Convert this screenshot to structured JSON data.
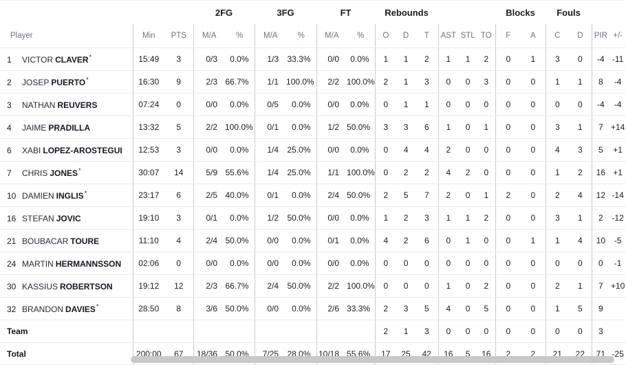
{
  "groups": {
    "fg2": "2FG",
    "fg3": "3FG",
    "ft": "FT",
    "reb": "Rebounds",
    "blk": "Blocks",
    "fouls": "Fouls"
  },
  "headers": {
    "player": "Player",
    "min": "Min",
    "pts": "PTS",
    "ma": "M/A",
    "pct": "%",
    "o": "O",
    "d": "D",
    "t": "T",
    "ast": "AST",
    "stl": "STL",
    "to": "TO",
    "f": "F",
    "a": "A",
    "c": "C",
    "dd": "D",
    "pir": "PIR",
    "pm": "+/-"
  },
  "rows": [
    {
      "num": "1",
      "first": "VICTOR",
      "last": "CLAVER",
      "star": "*",
      "min": "15:49",
      "pts": "3",
      "fg2_ma": "0/3",
      "fg2_pct": "0.0%",
      "fg3_ma": "1/3",
      "fg3_pct": "33.3%",
      "ft_ma": "0/0",
      "ft_pct": "0.0%",
      "o": "1",
      "d": "1",
      "t": "2",
      "ast": "1",
      "stl": "1",
      "to": "2",
      "f": "0",
      "a": "1",
      "c": "3",
      "dd": "0",
      "pir": "-4",
      "pm": "-11"
    },
    {
      "num": "2",
      "first": "JOSEP",
      "last": "PUERTO",
      "star": "*",
      "min": "16:30",
      "pts": "9",
      "fg2_ma": "2/3",
      "fg2_pct": "66.7%",
      "fg3_ma": "1/1",
      "fg3_pct": "100.0%",
      "ft_ma": "2/2",
      "ft_pct": "100.0%",
      "o": "2",
      "d": "1",
      "t": "3",
      "ast": "0",
      "stl": "0",
      "to": "3",
      "f": "0",
      "a": "0",
      "c": "1",
      "dd": "1",
      "pir": "8",
      "pm": "-4"
    },
    {
      "num": "3",
      "first": "NATHAN",
      "last": "REUVERS",
      "star": "",
      "min": "07:24",
      "pts": "0",
      "fg2_ma": "0/0",
      "fg2_pct": "0.0%",
      "fg3_ma": "0/5",
      "fg3_pct": "0.0%",
      "ft_ma": "0/0",
      "ft_pct": "0.0%",
      "o": "0",
      "d": "1",
      "t": "1",
      "ast": "0",
      "stl": "0",
      "to": "0",
      "f": "0",
      "a": "0",
      "c": "0",
      "dd": "0",
      "pir": "-4",
      "pm": "-4"
    },
    {
      "num": "4",
      "first": "JAIME",
      "last": "PRADILLA",
      "star": "",
      "min": "13:32",
      "pts": "5",
      "fg2_ma": "2/2",
      "fg2_pct": "100.0%",
      "fg3_ma": "0/1",
      "fg3_pct": "0.0%",
      "ft_ma": "1/2",
      "ft_pct": "50.0%",
      "o": "3",
      "d": "3",
      "t": "6",
      "ast": "1",
      "stl": "0",
      "to": "1",
      "f": "0",
      "a": "0",
      "c": "3",
      "dd": "1",
      "pir": "7",
      "pm": "+14"
    },
    {
      "num": "6",
      "first": "XABI",
      "last": "LOPEZ-AROSTEGUI",
      "star": "",
      "min": "12:53",
      "pts": "3",
      "fg2_ma": "0/0",
      "fg2_pct": "0.0%",
      "fg3_ma": "1/4",
      "fg3_pct": "25.0%",
      "ft_ma": "0/0",
      "ft_pct": "0.0%",
      "o": "0",
      "d": "4",
      "t": "4",
      "ast": "2",
      "stl": "0",
      "to": "0",
      "f": "0",
      "a": "0",
      "c": "4",
      "dd": "3",
      "pir": "5",
      "pm": "+1"
    },
    {
      "num": "7",
      "first": "CHRIS",
      "last": "JONES",
      "star": "*",
      "min": "30:07",
      "pts": "14",
      "fg2_ma": "5/9",
      "fg2_pct": "55.6%",
      "fg3_ma": "1/4",
      "fg3_pct": "25.0%",
      "ft_ma": "1/1",
      "ft_pct": "100.0%",
      "o": "0",
      "d": "2",
      "t": "2",
      "ast": "4",
      "stl": "2",
      "to": "0",
      "f": "0",
      "a": "0",
      "c": "1",
      "dd": "2",
      "pir": "16",
      "pm": "+1"
    },
    {
      "num": "10",
      "first": "DAMIEN",
      "last": "INGLIS",
      "star": "*",
      "min": "23:17",
      "pts": "6",
      "fg2_ma": "2/5",
      "fg2_pct": "40.0%",
      "fg3_ma": "0/1",
      "fg3_pct": "0.0%",
      "ft_ma": "2/4",
      "ft_pct": "50.0%",
      "o": "2",
      "d": "5",
      "t": "7",
      "ast": "2",
      "stl": "0",
      "to": "1",
      "f": "2",
      "a": "0",
      "c": "2",
      "dd": "4",
      "pir": "12",
      "pm": "-14"
    },
    {
      "num": "16",
      "first": "STEFAN",
      "last": "JOVIC",
      "star": "",
      "min": "19:10",
      "pts": "3",
      "fg2_ma": "0/1",
      "fg2_pct": "0.0%",
      "fg3_ma": "1/2",
      "fg3_pct": "50.0%",
      "ft_ma": "0/0",
      "ft_pct": "0.0%",
      "o": "1",
      "d": "2",
      "t": "3",
      "ast": "1",
      "stl": "1",
      "to": "2",
      "f": "0",
      "a": "0",
      "c": "3",
      "dd": "1",
      "pir": "2",
      "pm": "-12"
    },
    {
      "num": "21",
      "first": "BOUBACAR",
      "last": "TOURE",
      "star": "",
      "min": "11:10",
      "pts": "4",
      "fg2_ma": "2/4",
      "fg2_pct": "50.0%",
      "fg3_ma": "0/0",
      "fg3_pct": "0.0%",
      "ft_ma": "0/1",
      "ft_pct": "0.0%",
      "o": "4",
      "d": "2",
      "t": "6",
      "ast": "0",
      "stl": "1",
      "to": "0",
      "f": "0",
      "a": "1",
      "c": "1",
      "dd": "4",
      "pir": "10",
      "pm": "-5"
    },
    {
      "num": "24",
      "first": "MARTIN",
      "last": "HERMANNSSON",
      "star": "",
      "min": "02:06",
      "pts": "0",
      "fg2_ma": "0/0",
      "fg2_pct": "0.0%",
      "fg3_ma": "0/0",
      "fg3_pct": "0.0%",
      "ft_ma": "0/0",
      "ft_pct": "0.0%",
      "o": "0",
      "d": "0",
      "t": "0",
      "ast": "0",
      "stl": "0",
      "to": "0",
      "f": "0",
      "a": "0",
      "c": "0",
      "dd": "0",
      "pir": "0",
      "pm": "-1"
    },
    {
      "num": "30",
      "first": "KASSIUS",
      "last": "ROBERTSON",
      "star": "",
      "min": "19:12",
      "pts": "12",
      "fg2_ma": "2/3",
      "fg2_pct": "66.7%",
      "fg3_ma": "2/4",
      "fg3_pct": "50.0%",
      "ft_ma": "2/2",
      "ft_pct": "100.0%",
      "o": "0",
      "d": "0",
      "t": "0",
      "ast": "1",
      "stl": "0",
      "to": "2",
      "f": "0",
      "a": "0",
      "c": "2",
      "dd": "1",
      "pir": "7",
      "pm": "+10"
    },
    {
      "num": "32",
      "first": "BRANDON",
      "last": "DAVIES",
      "star": "*",
      "min": "28:50",
      "pts": "8",
      "fg2_ma": "3/6",
      "fg2_pct": "50.0%",
      "fg3_ma": "0/0",
      "fg3_pct": "0.0%",
      "ft_ma": "2/6",
      "ft_pct": "33.3%",
      "o": "2",
      "d": "3",
      "t": "5",
      "ast": "4",
      "stl": "0",
      "to": "5",
      "f": "0",
      "a": "0",
      "c": "1",
      "dd": "5",
      "pir": "9",
      "pm": ""
    },
    {
      "label": "Team",
      "min": "",
      "pts": "",
      "fg2_ma": "",
      "fg2_pct": "",
      "fg3_ma": "",
      "fg3_pct": "",
      "ft_ma": "",
      "ft_pct": "",
      "o": "2",
      "d": "1",
      "t": "3",
      "ast": "0",
      "stl": "0",
      "to": "0",
      "f": "0",
      "a": "0",
      "c": "0",
      "dd": "0",
      "pir": "3",
      "pm": ""
    },
    {
      "label": "Total",
      "min": "200:00",
      "pts": "67",
      "fg2_ma": "18/36",
      "fg2_pct": "50.0%",
      "fg3_ma": "7/25",
      "fg3_pct": "28.0%",
      "ft_ma": "10/18",
      "ft_pct": "55.6%",
      "o": "17",
      "d": "25",
      "t": "42",
      "ast": "16",
      "stl": "5",
      "to": "16",
      "f": "2",
      "a": "2",
      "c": "21",
      "dd": "22",
      "pir": "71",
      "pm": "-25"
    }
  ],
  "colors": {
    "text": "#181b21",
    "muted_header": "#6d7380",
    "row_divider": "#e9eaec",
    "column_separator": "#c7cbd1",
    "scrollbar_thumb": "#c9c9c9"
  }
}
